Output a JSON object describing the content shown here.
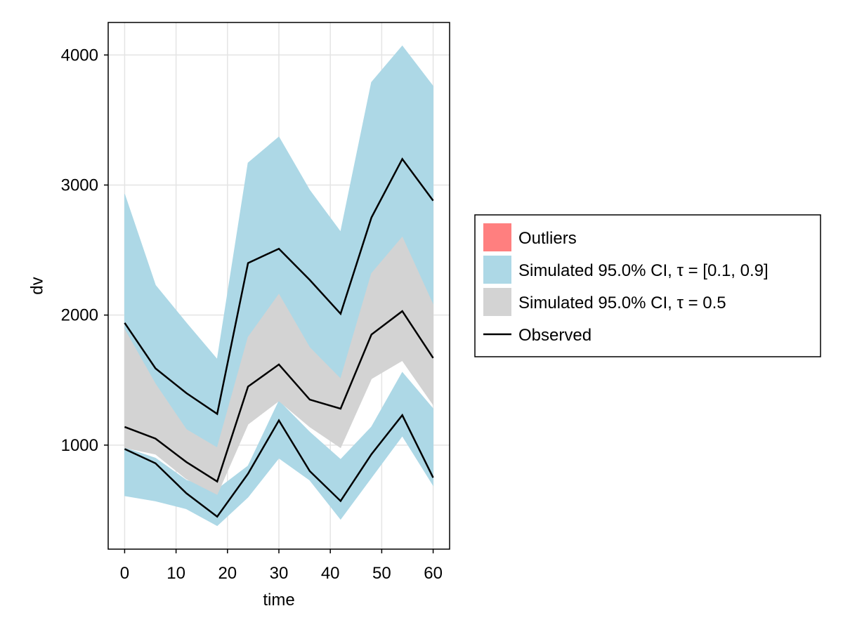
{
  "chart_data": {
    "type": "area",
    "xlabel": "time",
    "ylabel": "dv",
    "xlim": [
      -3.2,
      63.2
    ],
    "ylim": [
      200,
      4250
    ],
    "x_ticks": [
      0,
      10,
      20,
      30,
      40,
      50,
      60
    ],
    "y_ticks": [
      1000,
      2000,
      3000,
      4000
    ],
    "grid": true,
    "legend_position": "right",
    "x": [
      0,
      6,
      12,
      18,
      24,
      30,
      36,
      42,
      48,
      54,
      60
    ],
    "bands": [
      {
        "name": "Simulated 95.0% CI, τ = [0.1, 0.9]",
        "color": "#add8e6",
        "lower": [
          1890,
          1470,
          1120,
          980,
          1830,
          2160,
          1750,
          1510,
          2320,
          2600,
          2080
        ],
        "upper": [
          2930,
          2230,
          1940,
          1660,
          3170,
          3370,
          2960,
          2640,
          3790,
          4070,
          3760
        ]
      },
      {
        "name": "Simulated 95.0% CI, τ = [0.1, 0.9]",
        "color": "#add8e6",
        "lower": [
          610,
          570,
          510,
          380,
          600,
          900,
          730,
          430,
          750,
          1070,
          690
        ],
        "upper": [
          980,
          900,
          730,
          660,
          840,
          1340,
          1100,
          890,
          1140,
          1560,
          1280
        ]
      },
      {
        "name": "Simulated 95.0% CI, τ = 0.5",
        "color": "#d3d3d3",
        "lower": [
          980,
          930,
          740,
          620,
          1160,
          1340,
          1140,
          980,
          1510,
          1650,
          1310
        ],
        "upper": [
          1890,
          1470,
          1120,
          980,
          1830,
          2160,
          1750,
          1510,
          2320,
          2600,
          2080
        ]
      }
    ],
    "series": [
      {
        "name": "Observed",
        "color": "#000000",
        "values": [
          1940,
          1590,
          1400,
          1240,
          2400,
          2510,
          2270,
          2010,
          2750,
          3200,
          2880
        ]
      },
      {
        "name": "Observed",
        "color": "#000000",
        "values": [
          1140,
          1050,
          870,
          720,
          1450,
          1620,
          1350,
          1280,
          1850,
          2030,
          1670
        ]
      },
      {
        "name": "Observed",
        "color": "#000000",
        "values": [
          970,
          860,
          630,
          450,
          780,
          1190,
          800,
          570,
          930,
          1230,
          750
        ]
      }
    ],
    "legend": [
      {
        "label": "Outliers",
        "kind": "patch",
        "color": "#ff7f7f"
      },
      {
        "label": "Simulated 95.0% CI, τ = [0.1, 0.9]",
        "kind": "patch",
        "color": "#add8e6"
      },
      {
        "label": "Simulated 95.0% CI, τ = 0.5",
        "kind": "patch",
        "color": "#d3d3d3"
      },
      {
        "label": "Observed",
        "kind": "line",
        "color": "#000000"
      }
    ]
  }
}
